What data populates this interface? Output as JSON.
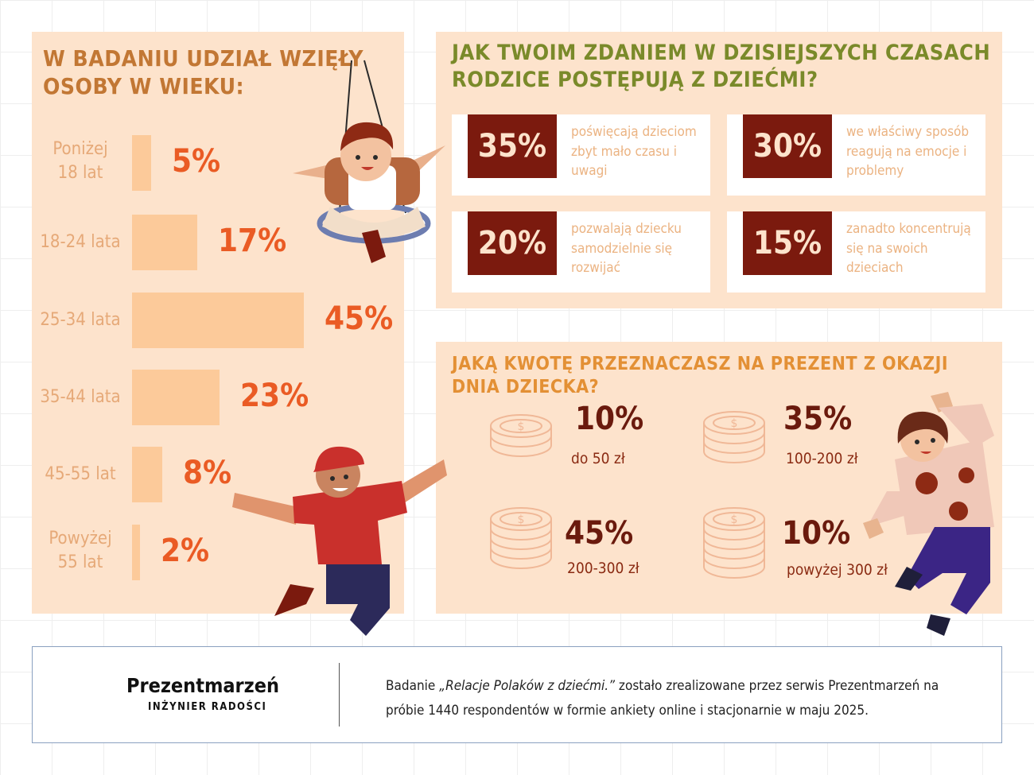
{
  "age_section": {
    "title": "W BADANIU UDZIAŁ WZIĘŁY OSOBY W WIEKU:",
    "items": [
      {
        "label": "Poniżej 18 lat",
        "value_text": "5%",
        "value": 5
      },
      {
        "label": "18-24 lata",
        "value_text": "17%",
        "value": 17
      },
      {
        "label": "25-34 lata",
        "value_text": "45%",
        "value": 45
      },
      {
        "label": "35-44 lata",
        "value_text": "23%",
        "value": 23
      },
      {
        "label": "45-55 lat",
        "value_text": "8%",
        "value": 8
      },
      {
        "label": "Powyżej 55 lat",
        "value_text": "2%",
        "value": 2
      }
    ]
  },
  "opinion_section": {
    "title": "JAK TWOIM ZDANIEM W DZISIEJSZYCH CZASACH RODZICE POSTĘPUJĄ Z DZIEĆMI?",
    "cards": [
      {
        "value": "35%",
        "text": "poświęcają dzieciom zbyt mało czasu i uwagi"
      },
      {
        "value": "30%",
        "text": "we właściwy sposób reagują na emocje i problemy"
      },
      {
        "value": "20%",
        "text": "pozwalają dziecku samodzielnie się rozwijać"
      },
      {
        "value": "15%",
        "text": "zanadto koncentrują się na swoich dzieciach"
      }
    ]
  },
  "budget_section": {
    "title": "JAKĄ KWOTĘ PRZEZNACZASZ NA PREZENT Z OKAZJI DNIA DZIECKA?",
    "items": [
      {
        "value": "10%",
        "label": "do 50 zł",
        "icon": "coin-stack-2-icon"
      },
      {
        "value": "35%",
        "label": "100-200 zł",
        "icon": "coin-stack-3-icon"
      },
      {
        "value": "45%",
        "label": "200-300 zł",
        "icon": "coin-stack-4-icon"
      },
      {
        "value": "10%",
        "label": "powyżej 300 zł",
        "icon": "coin-stack-5-icon"
      }
    ]
  },
  "footer": {
    "brand_name": "Prezentmarzeń",
    "brand_tagline": "INŻYNIER RADOŚCI",
    "note_prefix": "Badanie ",
    "note_title": "„Relacje Polaków z dziećmi.”",
    "note_rest": " zostało zrealizowane przez serwis Prezentmarzeń na próbie 1440 respondentów w formie ankiety online i stacjonarnie w maju 2025."
  },
  "colors": {
    "panel_bg": "#fde3cc",
    "bar": "#fcca9a",
    "age_value": "#ea5b24",
    "badge": "#7b1a0e",
    "opinion_title": "#7a8a2a",
    "budget_title": "#e39035"
  },
  "chart_data": [
    {
      "type": "bar",
      "orientation": "horizontal",
      "title": "W BADANIU UDZIAŁ WZIĘŁY OSOBY W WIEKU:",
      "categories": [
        "Poniżej 18 lat",
        "18-24 lata",
        "25-34 lata",
        "35-44 lata",
        "45-55 lat",
        "Powyżej 55 lat"
      ],
      "values": [
        5,
        17,
        45,
        23,
        8,
        2
      ],
      "unit": "%"
    },
    {
      "type": "table",
      "title": "JAK TWOIM ZDANIEM W DZISIEJSZYCH CZASACH RODZICE POSTĘPUJĄ Z DZIEĆMI?",
      "categories": [
        "poświęcają dzieciom zbyt mało czasu i uwagi",
        "we właściwy sposób reagują na emocje i problemy",
        "pozwalają dziecku samodzielnie się rozwijać",
        "zanadto koncentrują się na swoich dzieciach"
      ],
      "values": [
        35,
        30,
        20,
        15
      ],
      "unit": "%"
    },
    {
      "type": "table",
      "title": "JAKĄ KWOTĘ PRZEZNACZASZ NA PREZENT Z OKAZJI DNIA DZIECKA?",
      "categories": [
        "do 50 zł",
        "100-200 zł",
        "200-300 zł",
        "powyżej 300 zł"
      ],
      "values": [
        10,
        35,
        45,
        10
      ],
      "unit": "%"
    }
  ]
}
